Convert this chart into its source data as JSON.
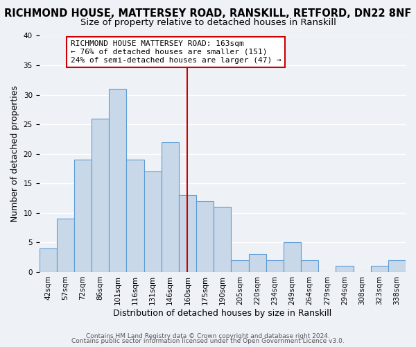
{
  "title": "RICHMOND HOUSE, MATTERSEY ROAD, RANSKILL, RETFORD, DN22 8NF",
  "subtitle": "Size of property relative to detached houses in Ranskill",
  "xlabel": "Distribution of detached houses by size in Ranskill",
  "ylabel": "Number of detached properties",
  "bar_values": [
    4,
    9,
    19,
    26,
    31,
    19,
    17,
    22,
    13,
    12,
    11,
    2,
    3,
    2,
    5,
    2,
    0,
    1,
    0,
    1,
    2
  ],
  "all_labels": [
    "42sqm",
    "57sqm",
    "72sqm",
    "86sqm",
    "101sqm",
    "116sqm",
    "131sqm",
    "146sqm",
    "160sqm",
    "175sqm",
    "190sqm",
    "205sqm",
    "220sqm",
    "234sqm",
    "249sqm",
    "264sqm",
    "279sqm",
    "294sqm",
    "308sqm",
    "323sqm",
    "338sqm"
  ],
  "bar_color": "#c8d8e8",
  "bar_edge_color": "#5b9bd5",
  "vline_index": 8,
  "vline_color": "#cc0000",
  "annotation_line1": "RICHMOND HOUSE MATTERSEY ROAD: 163sqm",
  "annotation_line2": "← 76% of detached houses are smaller (151)",
  "annotation_line3": "24% of semi-detached houses are larger (47) →",
  "annotation_box_color": "#cc0000",
  "ylim": [
    0,
    40
  ],
  "yticks": [
    0,
    5,
    10,
    15,
    20,
    25,
    30,
    35,
    40
  ],
  "background_color": "#eef2f7",
  "grid_color": "#ffffff",
  "title_fontsize": 10.5,
  "subtitle_fontsize": 9.5,
  "axis_label_fontsize": 9,
  "tick_fontsize": 7.5,
  "annotation_fontsize": 8,
  "footer_fontsize": 6.5,
  "footer1": "Contains HM Land Registry data © Crown copyright and database right 2024.",
  "footer2": "Contains public sector information licensed under the Open Government Licence v3.0."
}
